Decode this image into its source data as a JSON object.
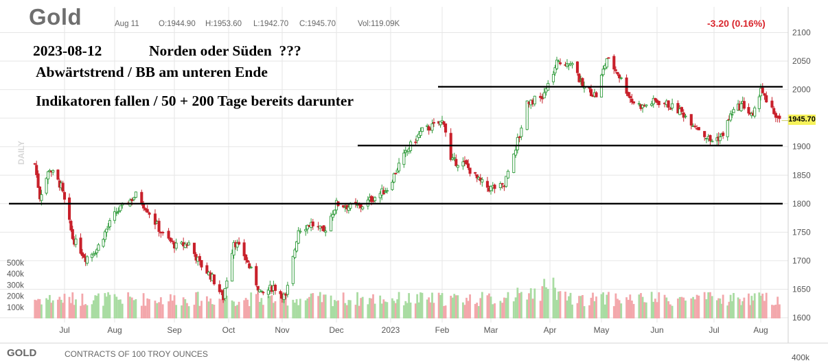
{
  "header": {
    "symbol_title": "Gold",
    "date": "Aug 11",
    "open": "O:1944.90",
    "high": "H:1953.60",
    "low": "L:1942.70",
    "close": "C:1945.70",
    "volume": "Vol:119.09K",
    "change": "-3.20 (0.16%)"
  },
  "annotations": {
    "line1_date": "2023-08-12",
    "line1_text": "Norden oder Süden  ???",
    "line2": "Abwärtstrend / BB am unteren Ende",
    "line3": "Indikatoren fallen / 50 + 200 Tage bereits darunter"
  },
  "side_label": "DAILY",
  "last_price_label": "1945.70",
  "footer": {
    "symbol": "GOLD",
    "description": "CONTRACTS OF 100 TROY OUNCES",
    "right_label": "400k"
  },
  "colors": {
    "up": "#2e9a3a",
    "down": "#c8202b",
    "vol_up": "#a9dca2",
    "vol_down": "#f3a7ab",
    "grid": "#e6e6e6",
    "highlight": "#f6f25a",
    "change": "#d9262d"
  },
  "chart_data": {
    "type": "candlestick",
    "title": "Gold",
    "period": "DAILY",
    "y_ticks": [
      1600,
      1650,
      1700,
      1750,
      1800,
      1850,
      1900,
      1950,
      2000,
      2050,
      2100
    ],
    "ylim": [
      1600,
      2100
    ],
    "x_labels": [
      "Jul",
      "Aug",
      "Sep",
      "Oct",
      "Nov",
      "Dec",
      "2023",
      "Feb",
      "Mar",
      "Apr",
      "May",
      "Jun",
      "Jul",
      "Aug"
    ],
    "volume_ticks": [
      "100k",
      "200k",
      "300k",
      "400k",
      "500k"
    ],
    "volume_max_k": 400,
    "horizontal_lines": [
      {
        "price": 1800,
        "range": "Jun 2022 – Aug 2023"
      },
      {
        "price": 1902,
        "range": "Dec 2022 – Aug 2023"
      },
      {
        "price": 2005,
        "range": "Feb 2023 – Aug 2023"
      }
    ],
    "last_close": 1945.7,
    "price_anchors_approx": [
      [
        "2022-06-13",
        1870
      ],
      [
        "2022-06-16",
        1812
      ],
      [
        "2022-06-22",
        1862
      ],
      [
        "2022-06-29",
        1830
      ],
      [
        "2022-07-06",
        1740
      ],
      [
        "2022-07-14",
        1705
      ],
      [
        "2022-07-21",
        1720
      ],
      [
        "2022-07-27",
        1755
      ],
      [
        "2022-08-02",
        1785
      ],
      [
        "2022-08-12",
        1815
      ],
      [
        "2022-08-18",
        1790
      ],
      [
        "2022-08-26",
        1745
      ],
      [
        "2022-09-02",
        1725
      ],
      [
        "2022-09-09",
        1730
      ],
      [
        "2022-09-15",
        1695
      ],
      [
        "2022-09-22",
        1670
      ],
      [
        "2022-09-28",
        1635
      ],
      [
        "2022-10-04",
        1735
      ],
      [
        "2022-10-10",
        1710
      ],
      [
        "2022-10-20",
        1640
      ],
      [
        "2022-10-27",
        1655
      ],
      [
        "2022-11-03",
        1635
      ],
      [
        "2022-11-10",
        1755
      ],
      [
        "2022-11-17",
        1765
      ],
      [
        "2022-11-24",
        1750
      ],
      [
        "2022-12-01",
        1800
      ],
      [
        "2022-12-08",
        1795
      ],
      [
        "2022-12-15",
        1795
      ],
      [
        "2022-12-22",
        1810
      ],
      [
        "2022-12-30",
        1826
      ],
      [
        "2023-01-06",
        1868
      ],
      [
        "2023-01-12",
        1898
      ],
      [
        "2023-01-20",
        1928
      ],
      [
        "2023-01-26",
        1935
      ],
      [
        "2023-02-02",
        1945
      ],
      [
        "2023-02-06",
        1875
      ],
      [
        "2023-02-14",
        1870
      ],
      [
        "2023-02-22",
        1840
      ],
      [
        "2023-02-28",
        1827
      ],
      [
        "2023-03-08",
        1830
      ],
      [
        "2023-03-10",
        1860
      ],
      [
        "2023-03-16",
        1920
      ],
      [
        "2023-03-20",
        1980
      ],
      [
        "2023-03-28",
        1985
      ],
      [
        "2023-04-05",
        2045
      ],
      [
        "2023-04-13",
        2050
      ],
      [
        "2023-04-20",
        2005
      ],
      [
        "2023-04-28",
        1990
      ],
      [
        "2023-05-04",
        2055
      ],
      [
        "2023-05-10",
        2030
      ],
      [
        "2023-05-18",
        1980
      ],
      [
        "2023-05-24",
        1970
      ],
      [
        "2023-05-31",
        1980
      ],
      [
        "2023-06-06",
        1975
      ],
      [
        "2023-06-14",
        1960
      ],
      [
        "2023-06-22",
        1935
      ],
      [
        "2023-06-29",
        1910
      ],
      [
        "2023-07-06",
        1918
      ],
      [
        "2023-07-13",
        1960
      ],
      [
        "2023-07-20",
        1975
      ],
      [
        "2023-07-27",
        1950
      ],
      [
        "2023-08-01",
        2005
      ],
      [
        "2023-08-04",
        1975
      ],
      [
        "2023-08-09",
        1955
      ],
      [
        "2023-08-11",
        1945.7
      ]
    ]
  }
}
